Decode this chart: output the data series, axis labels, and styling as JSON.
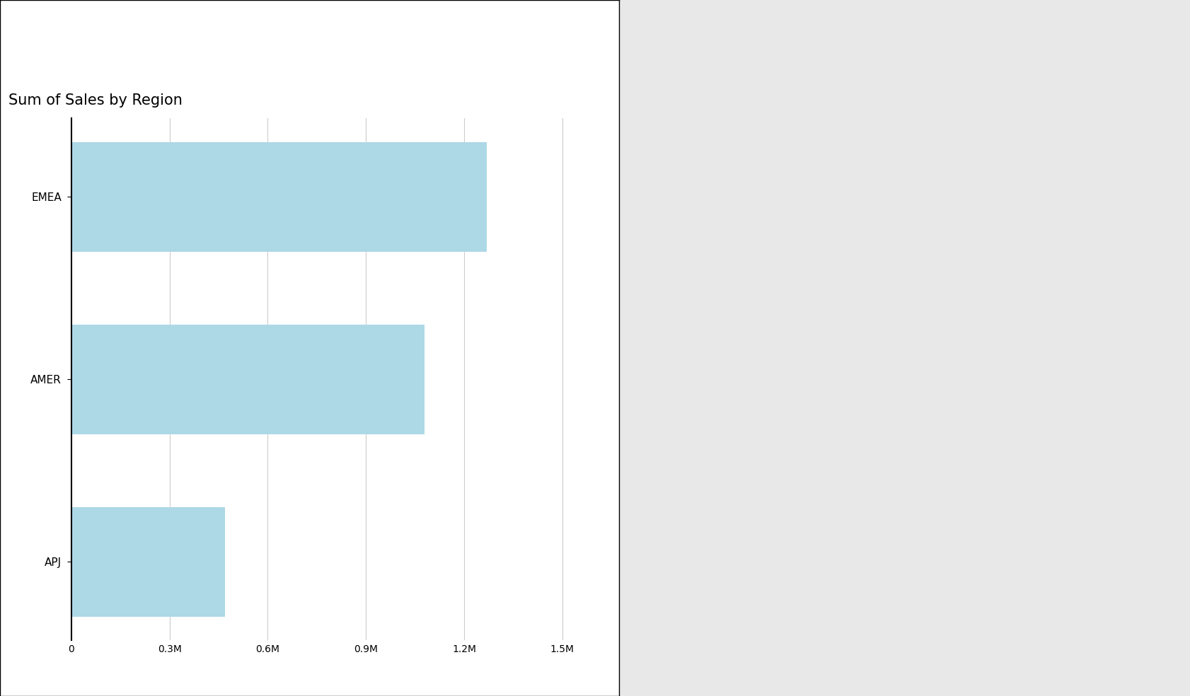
{
  "title": "Sum of Sales by Region",
  "regions": [
    "APJ",
    "AMER",
    "EMEA"
  ],
  "values": [
    470000,
    1080000,
    1268145.44
  ],
  "bar_color": "#ADD8E6",
  "background_color": "#ffffff",
  "grid_color": "#cccccc",
  "outer_bg_color": "#e8e8e8",
  "axis_color": "#000000",
  "title_fontsize": 15,
  "label_fontsize": 11,
  "tick_fontsize": 10,
  "xlim": [
    0,
    1600000
  ],
  "xticks": [
    0,
    300000,
    600000,
    900000,
    1200000,
    1500000
  ],
  "xtick_labels": [
    "0",
    "0.3M",
    "0.6M",
    "0.9M",
    "1.2M",
    "1.5M"
  ],
  "bar_height": 0.6
}
